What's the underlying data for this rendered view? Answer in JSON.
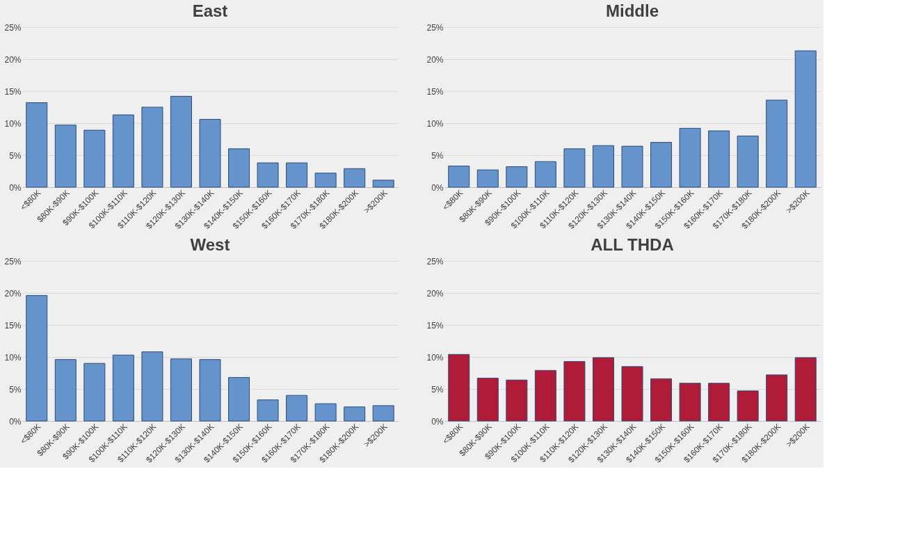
{
  "chart_data": [
    {
      "type": "bar",
      "title": "East",
      "categories": [
        "<$80K",
        "$80K-$90K",
        "$90K-$100K",
        "$100K-$110K",
        "$110K-$120K",
        "$120K-$130K",
        "$130K-$140K",
        "$140K-$150K",
        "$150K-$160K",
        "$160K-$170K",
        "$170K-$180K",
        "$180K-$200K",
        ">$200K"
      ],
      "values": [
        13.2,
        9.7,
        8.9,
        11.3,
        12.5,
        14.2,
        10.6,
        6.0,
        3.8,
        3.8,
        2.2,
        2.9,
        1.1
      ],
      "color": "#6494cb",
      "ylim": [
        0,
        25
      ],
      "yticks": [
        {
          "value": 0,
          "label": "0%"
        },
        {
          "value": 5,
          "label": "5%"
        },
        {
          "value": 10,
          "label": "10%"
        },
        {
          "value": 15,
          "label": "15%"
        },
        {
          "value": 20,
          "label": "20%"
        },
        {
          "value": 25,
          "label": "25%"
        }
      ],
      "grid": "y",
      "legend": false
    },
    {
      "type": "bar",
      "title": "Middle",
      "categories": [
        "<$80K",
        "$80K-$90K",
        "$90K-$100K",
        "$100K-$110K",
        "$110K-$120K",
        "$120K-$130K",
        "$130K-$140K",
        "$140K-$150K",
        "$150K-$160K",
        "$160K-$170K",
        "$170K-$180K",
        "$180K-$200K",
        ">$200K"
      ],
      "values": [
        3.3,
        2.7,
        3.2,
        4.0,
        6.0,
        6.5,
        6.4,
        7.0,
        9.2,
        8.8,
        8.0,
        13.6,
        21.3
      ],
      "color": "#6494cb",
      "ylim": [
        0,
        25
      ],
      "yticks": [
        {
          "value": 0,
          "label": "0%"
        },
        {
          "value": 5,
          "label": "5%"
        },
        {
          "value": 10,
          "label": "10%"
        },
        {
          "value": 15,
          "label": "15%"
        },
        {
          "value": 20,
          "label": "20%"
        },
        {
          "value": 25,
          "label": "25%"
        }
      ],
      "grid": "y",
      "legend": false
    },
    {
      "type": "bar",
      "title": "West",
      "categories": [
        "<$80K",
        "$80K-$90K",
        "$90K-$100K",
        "$100K-$110K",
        "$110K-$120K",
        "$120K-$130K",
        "$130K-$140K",
        "$140K-$150K",
        "$150K-$160K",
        "$160K-$170K",
        "$170K-$180K",
        "$180K-$200K",
        ">$200K"
      ],
      "values": [
        19.6,
        9.6,
        9.0,
        10.3,
        10.8,
        9.7,
        9.6,
        6.8,
        3.3,
        4.0,
        2.7,
        2.2,
        2.4
      ],
      "color": "#6494cb",
      "ylim": [
        0,
        25
      ],
      "yticks": [
        {
          "value": 0,
          "label": "0%"
        },
        {
          "value": 5,
          "label": "5%"
        },
        {
          "value": 10,
          "label": "10%"
        },
        {
          "value": 15,
          "label": "15%"
        },
        {
          "value": 20,
          "label": "20%"
        },
        {
          "value": 25,
          "label": "25%"
        }
      ],
      "grid": "y",
      "legend": false
    },
    {
      "type": "bar",
      "title": "ALL THDA",
      "categories": [
        "<$80K",
        "$80K-$90K",
        "$90K-$100K",
        "$100K-$110K",
        "$110K-$120K",
        "$120K-$130K",
        "$130K-$140K",
        "$140K-$150K",
        "$150K-$160K",
        "$160K-$170K",
        "$170K-$180K",
        "$180K-$200K",
        ">$200K"
      ],
      "values": [
        10.4,
        6.7,
        6.4,
        7.9,
        9.3,
        9.9,
        8.5,
        6.6,
        5.9,
        5.9,
        4.7,
        7.2,
        9.9
      ],
      "color": "#b01c37",
      "ylim": [
        0,
        25
      ],
      "yticks": [
        {
          "value": 0,
          "label": "0%"
        },
        {
          "value": 5,
          "label": "5%"
        },
        {
          "value": 10,
          "label": "10%"
        },
        {
          "value": 15,
          "label": "15%"
        },
        {
          "value": 20,
          "label": "20%"
        },
        {
          "value": 25,
          "label": "25%"
        }
      ],
      "grid": "y",
      "legend": false
    }
  ]
}
